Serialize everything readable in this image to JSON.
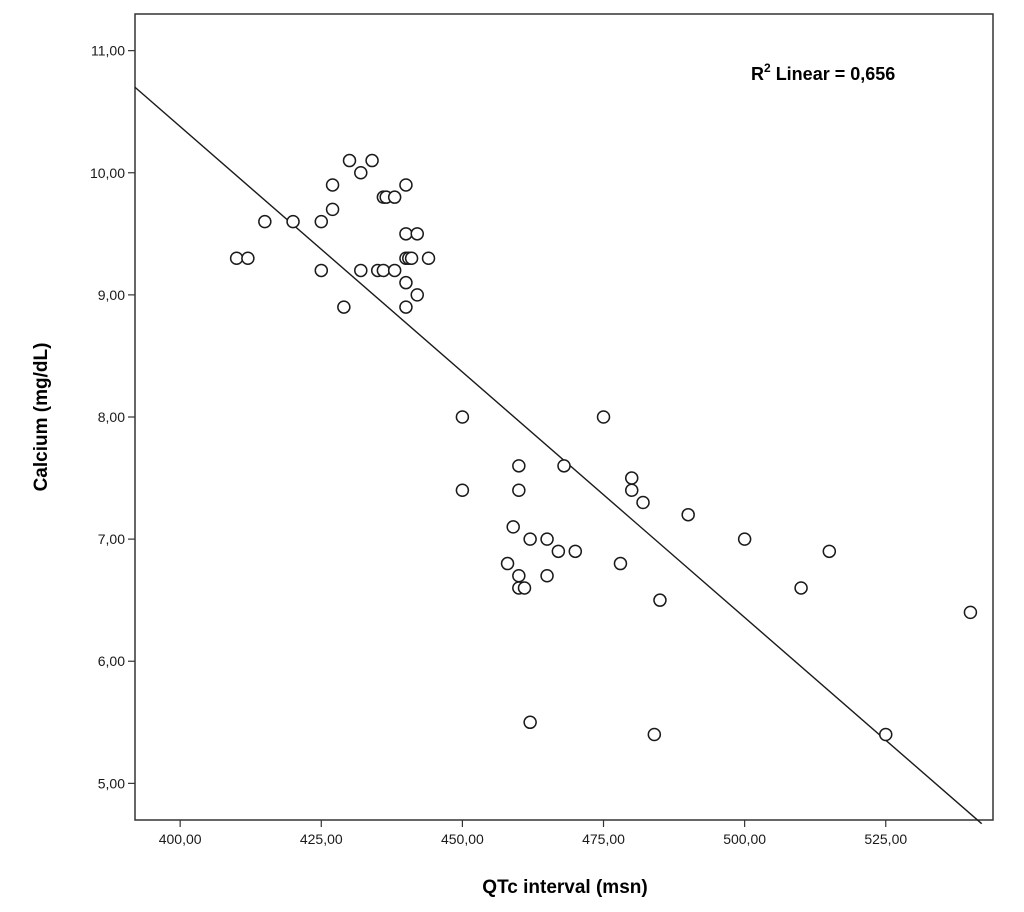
{
  "chart_data": {
    "type": "scatter",
    "xlabel": "QTc interval (msn)",
    "ylabel": "Calcium (mg/dL)",
    "xlim": [
      392,
      544
    ],
    "ylim": [
      4.7,
      11.3
    ],
    "x_ticks": [
      400,
      425,
      450,
      475,
      500,
      525
    ],
    "x_tick_labels": [
      "400,00",
      "425,00",
      "450,00",
      "475,00",
      "500,00",
      "525,00"
    ],
    "y_ticks": [
      5,
      6,
      7,
      8,
      9,
      10,
      11
    ],
    "y_tick_labels": [
      "5,00",
      "6,00",
      "7,00",
      "8,00",
      "9,00",
      "10,00",
      "11,00"
    ],
    "annotation": {
      "prefix": "R",
      "superscript": "2",
      "text": " Linear = 0,656",
      "position": "top-right"
    },
    "fit_line": {
      "x": [
        392,
        542
      ],
      "y": [
        10.7,
        4.67
      ]
    },
    "points": [
      {
        "x": 410,
        "y": 9.3
      },
      {
        "x": 412,
        "y": 9.3
      },
      {
        "x": 415,
        "y": 9.6
      },
      {
        "x": 420,
        "y": 9.6
      },
      {
        "x": 425,
        "y": 9.6
      },
      {
        "x": 425,
        "y": 9.2
      },
      {
        "x": 427,
        "y": 9.9
      },
      {
        "x": 427,
        "y": 9.7
      },
      {
        "x": 429,
        "y": 8.9
      },
      {
        "x": 430,
        "y": 10.1
      },
      {
        "x": 432,
        "y": 10.0
      },
      {
        "x": 432,
        "y": 9.2
      },
      {
        "x": 434,
        "y": 10.1
      },
      {
        "x": 435,
        "y": 9.2
      },
      {
        "x": 436,
        "y": 9.8
      },
      {
        "x": 436.5,
        "y": 9.8
      },
      {
        "x": 436,
        "y": 9.2
      },
      {
        "x": 438,
        "y": 9.8
      },
      {
        "x": 438,
        "y": 9.2
      },
      {
        "x": 440,
        "y": 9.9
      },
      {
        "x": 440,
        "y": 9.5
      },
      {
        "x": 440,
        "y": 9.3
      },
      {
        "x": 440.5,
        "y": 9.3
      },
      {
        "x": 441,
        "y": 9.3
      },
      {
        "x": 440,
        "y": 9.1
      },
      {
        "x": 440,
        "y": 8.9
      },
      {
        "x": 442,
        "y": 9.5
      },
      {
        "x": 442,
        "y": 9.0
      },
      {
        "x": 444,
        "y": 9.3
      },
      {
        "x": 450,
        "y": 8.0
      },
      {
        "x": 450,
        "y": 7.4
      },
      {
        "x": 458,
        "y": 6.8
      },
      {
        "x": 459,
        "y": 7.1
      },
      {
        "x": 460,
        "y": 7.6
      },
      {
        "x": 460,
        "y": 7.4
      },
      {
        "x": 460,
        "y": 6.7
      },
      {
        "x": 460,
        "y": 6.6
      },
      {
        "x": 461,
        "y": 6.6
      },
      {
        "x": 462,
        "y": 7.0
      },
      {
        "x": 462,
        "y": 5.5
      },
      {
        "x": 465,
        "y": 7.0
      },
      {
        "x": 465,
        "y": 6.7
      },
      {
        "x": 467,
        "y": 6.9
      },
      {
        "x": 468,
        "y": 7.6
      },
      {
        "x": 470,
        "y": 6.9
      },
      {
        "x": 475,
        "y": 8.0
      },
      {
        "x": 478,
        "y": 6.8
      },
      {
        "x": 480,
        "y": 7.5
      },
      {
        "x": 480,
        "y": 7.4
      },
      {
        "x": 482,
        "y": 7.3
      },
      {
        "x": 484,
        "y": 5.4
      },
      {
        "x": 485,
        "y": 6.5
      },
      {
        "x": 490,
        "y": 7.2
      },
      {
        "x": 500,
        "y": 7.0
      },
      {
        "x": 510,
        "y": 6.6
      },
      {
        "x": 515,
        "y": 6.9
      },
      {
        "x": 525,
        "y": 5.4
      },
      {
        "x": 540,
        "y": 6.4
      }
    ]
  }
}
